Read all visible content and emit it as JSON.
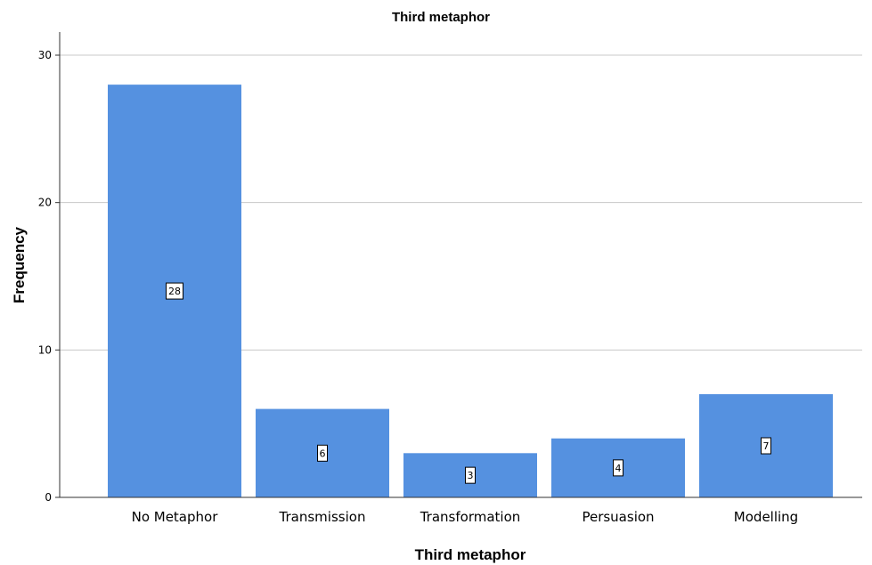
{
  "chart_data": {
    "type": "bar",
    "title": "Third metaphor",
    "xlabel": "Third metaphor",
    "ylabel": "Frequency",
    "categories": [
      "No Metaphor",
      "Transmission",
      "Transformation",
      "Persuasion",
      "Modelling"
    ],
    "values": [
      28,
      6,
      3,
      4,
      7
    ],
    "data_labels": [
      "28",
      "6",
      "3",
      "4",
      "7"
    ],
    "ylim": [
      0,
      30
    ],
    "yticks": [
      0,
      10,
      20,
      30
    ],
    "ytick_labels": [
      "0",
      "10",
      "20",
      "30"
    ],
    "grid": true,
    "bar_color": "#5591e0"
  }
}
